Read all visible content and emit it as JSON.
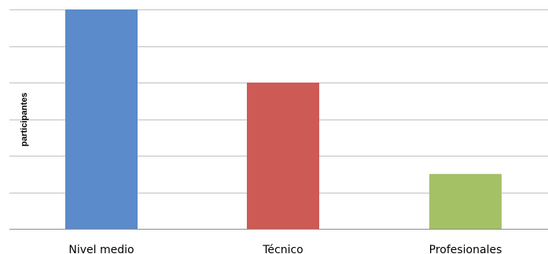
{
  "chart_data": {
    "type": "bar",
    "title": "",
    "xlabel": "",
    "ylabel": "participantes",
    "categories": [
      "Nivel medio",
      "Técnico",
      "Profesionales"
    ],
    "values": [
      6,
      4,
      1.5
    ],
    "ylim": [
      0,
      6
    ],
    "grid": true,
    "gridlines": 6,
    "colors": [
      "#5b8bcb",
      "#cd5a55",
      "#a4c166"
    ],
    "gridline_color": "#c0c0c0",
    "axis_color": "#8c8c8c"
  }
}
